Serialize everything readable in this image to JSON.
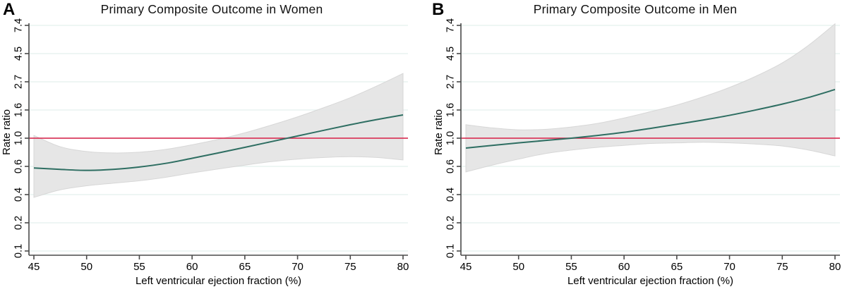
{
  "figure": {
    "ylabel": "Rate ratio",
    "xlabel": "Left ventricular ejection fraction (%)",
    "x_ticks": [
      45,
      50,
      55,
      60,
      65,
      70,
      75,
      80
    ],
    "y_ticks": [
      {
        "label": "7.4",
        "ln": 2.0
      },
      {
        "label": "4.5",
        "ln": 1.5
      },
      {
        "label": "2.7",
        "ln": 1.0
      },
      {
        "label": "1.6",
        "ln": 0.5
      },
      {
        "label": "1.0",
        "ln": 0.0
      },
      {
        "label": "0.6",
        "ln": -0.5
      },
      {
        "label": "0.4",
        "ln": -1.0
      },
      {
        "label": "0.2",
        "ln": -1.5
      },
      {
        "label": "0.1",
        "ln": -2.0
      }
    ],
    "y_scale": "log",
    "grid": "on",
    "reference_value": 1.0,
    "colors": {
      "fit_line": "#2e6e62",
      "reference_line": "#d81e46",
      "ci_fill": "#e4e4e4",
      "ci_edge": "#d7d7d7",
      "gridline": "#e8f3f0",
      "axis": "#4a4a4a",
      "text": "#000000"
    }
  },
  "chart_data": [
    {
      "type": "line",
      "panel_label": "A",
      "title": "Primary Composite Outcome in Women",
      "xlabel": "Left ventricular ejection fraction (%)",
      "ylabel": "Rate ratio",
      "y_scale": "log",
      "xlim": [
        45,
        80
      ],
      "ylim": [
        0.1,
        7.4
      ],
      "reference_value": 1.0,
      "x": [
        45,
        47.5,
        50,
        52.5,
        55,
        57.5,
        60,
        62.5,
        65,
        67.5,
        70,
        72.5,
        75,
        77.5,
        80
      ],
      "series": [
        {
          "name": "Rate ratio (fitted)",
          "values": [
            0.59,
            0.575,
            0.565,
            0.575,
            0.6,
            0.64,
            0.7,
            0.77,
            0.85,
            0.94,
            1.04,
            1.15,
            1.27,
            1.39,
            1.51
          ]
        },
        {
          "name": "95% CI lower",
          "values": [
            0.35,
            0.4,
            0.43,
            0.45,
            0.47,
            0.5,
            0.54,
            0.58,
            0.62,
            0.66,
            0.69,
            0.71,
            0.72,
            0.71,
            0.68
          ]
        },
        {
          "name": "95% CI upper",
          "values": [
            1.05,
            0.86,
            0.79,
            0.77,
            0.78,
            0.82,
            0.89,
            0.98,
            1.1,
            1.26,
            1.46,
            1.72,
            2.05,
            2.52,
            3.15
          ]
        }
      ]
    },
    {
      "type": "line",
      "panel_label": "B",
      "title": "Primary Composite Outcome in Men",
      "xlabel": "Left ventricular ejection fraction (%)",
      "ylabel": "Rate ratio",
      "y_scale": "log",
      "xlim": [
        45,
        80
      ],
      "ylim": [
        0.1,
        7.4
      ],
      "reference_value": 1.0,
      "x": [
        45,
        47.5,
        50,
        52.5,
        55,
        57.5,
        60,
        62.5,
        65,
        67.5,
        70,
        72.5,
        75,
        77.5,
        80
      ],
      "series": [
        {
          "name": "Rate ratio (fitted)",
          "values": [
            0.84,
            0.88,
            0.92,
            0.96,
            1.0,
            1.05,
            1.11,
            1.19,
            1.28,
            1.38,
            1.5,
            1.65,
            1.83,
            2.06,
            2.37
          ]
        },
        {
          "name": "95% CI lower",
          "values": [
            0.55,
            0.62,
            0.69,
            0.76,
            0.81,
            0.85,
            0.88,
            0.91,
            0.92,
            0.93,
            0.92,
            0.9,
            0.87,
            0.81,
            0.73
          ]
        },
        {
          "name": "95% CI upper",
          "values": [
            1.27,
            1.2,
            1.16,
            1.17,
            1.22,
            1.3,
            1.43,
            1.6,
            1.8,
            2.08,
            2.46,
            3.0,
            3.8,
            5.2,
            7.6
          ]
        }
      ]
    }
  ]
}
